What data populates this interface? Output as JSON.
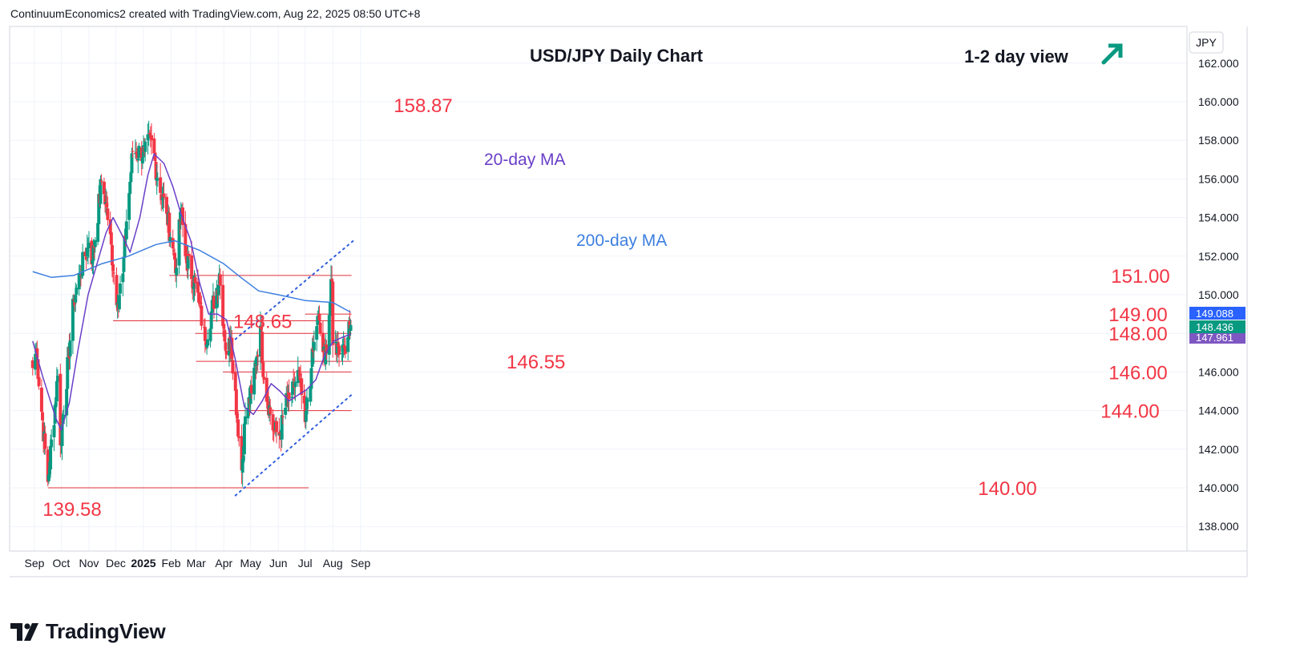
{
  "credit": "ContinuumEconomics2 created with TradingView.com, Aug 22, 2025 08:50 UTC+8",
  "brand": "TradingView",
  "colors": {
    "up": "#089981",
    "down": "#f23645",
    "level_line": "#e2303a",
    "ma20": "#6a3fc8",
    "ma200": "#3d7fe0",
    "channel": "#2f5ee0",
    "label_red": "#f23645",
    "arrow": "#089981",
    "grid": "#f0f3fa",
    "text": "#131722"
  },
  "chart_data": {
    "type": "candlestick",
    "title": "USD/JPY Daily Chart",
    "view_label": "1-2 day view",
    "view_direction": "up-arrow-icon",
    "currency": "JPY",
    "y_range": [
      136.8,
      163.2
    ],
    "y_ticks": [
      "162.000",
      "160.000",
      "158.000",
      "156.000",
      "154.000",
      "152.000",
      "150.000",
      "148.000",
      "146.000",
      "144.000",
      "142.000",
      "140.000",
      "138.000"
    ],
    "x_labels": [
      "Sep",
      "Oct",
      "Nov",
      "Dec",
      "2025",
      "Feb",
      "Mar",
      "Apr",
      "May",
      "Jun",
      "Jul",
      "Aug",
      "Sep"
    ],
    "price_tags": [
      {
        "text": "149.088",
        "value": 149.088,
        "color": "#2962ff"
      },
      {
        "text": "148.436",
        "value": 148.436,
        "color": "#089981"
      },
      {
        "text": "147.961",
        "value": 147.961,
        "color": "#7e57c2"
      }
    ],
    "levels": [
      {
        "label": "151.00",
        "value": 151.0,
        "from": "2025-01-30",
        "to": "2025-08-22"
      },
      {
        "label": "149.00",
        "value": 149.0,
        "from": "2025-07-01",
        "to": "2025-08-22"
      },
      {
        "label": "148.65",
        "value": 148.65,
        "from": "2024-11-28",
        "to": "2025-08-22"
      },
      {
        "label": "148.00",
        "value": 148.0,
        "from": "2025-02-28",
        "to": "2025-08-22"
      },
      {
        "label": "146.55",
        "value": 146.55,
        "from": "2025-03-01",
        "to": "2025-08-22"
      },
      {
        "label": "146.00",
        "value": 146.0,
        "from": "2025-03-31",
        "to": "2025-08-22"
      },
      {
        "label": "144.00",
        "value": 144.0,
        "from": "2025-04-07",
        "to": "2025-08-22"
      },
      {
        "label": "140.00",
        "value": 140.0,
        "from": "2024-09-16",
        "to": "2025-07-05"
      }
    ],
    "extremes": [
      {
        "label": "158.87",
        "value": 158.87,
        "date": "2025-01-10"
      },
      {
        "label": "139.58",
        "value": 139.58,
        "date": "2024-09-16"
      }
    ],
    "ma_labels": [
      "20-day MA",
      "200-day MA"
    ],
    "channel": [
      {
        "from": {
          "date": "2025-04-14",
          "value": 147.7
        },
        "to": {
          "date": "2025-08-24",
          "value": 152.8
        }
      },
      {
        "from": {
          "date": "2025-04-14",
          "value": 139.6
        },
        "to": {
          "date": "2025-08-24",
          "value": 144.9
        }
      }
    ],
    "swing_points": [
      {
        "date": "2024-08-30",
        "value": 146.2
      },
      {
        "date": "2024-09-03",
        "value": 147.2
      },
      {
        "date": "2024-09-16",
        "value": 140.3
      },
      {
        "date": "2024-09-27",
        "value": 145.8
      },
      {
        "date": "2024-09-30",
        "value": 142.2
      },
      {
        "date": "2024-10-15",
        "value": 149.7
      },
      {
        "date": "2024-10-22",
        "value": 151.1
      },
      {
        "date": "2024-11-01",
        "value": 152.7
      },
      {
        "date": "2024-11-05",
        "value": 151.8
      },
      {
        "date": "2024-11-15",
        "value": 155.9
      },
      {
        "date": "2024-11-20",
        "value": 154.8
      },
      {
        "date": "2024-12-03",
        "value": 149.6
      },
      {
        "date": "2024-12-09",
        "value": 151.1
      },
      {
        "date": "2024-12-13",
        "value": 153.8
      },
      {
        "date": "2024-12-20",
        "value": 157.4
      },
      {
        "date": "2025-01-02",
        "value": 157.4
      },
      {
        "date": "2025-01-10",
        "value": 158.0
      },
      {
        "date": "2025-01-17",
        "value": 156.0
      },
      {
        "date": "2025-01-27",
        "value": 154.2
      },
      {
        "date": "2025-02-03",
        "value": 152.4
      },
      {
        "date": "2025-02-07",
        "value": 151.4
      },
      {
        "date": "2025-02-12",
        "value": 154.5
      },
      {
        "date": "2025-02-17",
        "value": 152.0
      },
      {
        "date": "2025-02-28",
        "value": 150.6
      },
      {
        "date": "2025-03-04",
        "value": 149.6
      },
      {
        "date": "2025-03-11",
        "value": 147.6
      },
      {
        "date": "2025-03-27",
        "value": 151.0
      },
      {
        "date": "2025-04-04",
        "value": 146.9
      },
      {
        "date": "2025-04-09",
        "value": 147.7
      },
      {
        "date": "2025-04-21",
        "value": 140.9
      },
      {
        "date": "2025-04-25",
        "value": 143.7
      },
      {
        "date": "2025-05-02",
        "value": 144.9
      },
      {
        "date": "2025-05-12",
        "value": 148.4
      },
      {
        "date": "2025-05-16",
        "value": 145.6
      },
      {
        "date": "2025-05-27",
        "value": 142.9
      },
      {
        "date": "2025-06-03",
        "value": 142.8
      },
      {
        "date": "2025-06-11",
        "value": 144.6
      },
      {
        "date": "2025-06-16",
        "value": 144.7
      },
      {
        "date": "2025-06-23",
        "value": 146.1
      },
      {
        "date": "2025-07-01",
        "value": 143.4
      },
      {
        "date": "2025-07-08",
        "value": 146.2
      },
      {
        "date": "2025-07-15",
        "value": 148.9
      },
      {
        "date": "2025-07-23",
        "value": 146.5
      },
      {
        "date": "2025-07-31",
        "value": 150.7
      },
      {
        "date": "2025-08-01",
        "value": 147.4
      },
      {
        "date": "2025-08-07",
        "value": 147.3
      },
      {
        "date": "2025-08-13",
        "value": 147.4
      },
      {
        "date": "2025-08-18",
        "value": 147.8
      },
      {
        "date": "2025-08-21",
        "value": 148.43
      }
    ],
    "ma20_points": [
      {
        "date": "2024-08-30",
        "value": 147.6
      },
      {
        "date": "2024-09-10",
        "value": 145.8
      },
      {
        "date": "2024-09-25",
        "value": 143.6
      },
      {
        "date": "2024-10-01",
        "value": 143.0
      },
      {
        "date": "2024-10-10",
        "value": 144.4
      },
      {
        "date": "2024-10-20",
        "value": 147.2
      },
      {
        "date": "2024-10-31",
        "value": 150.0
      },
      {
        "date": "2024-11-10",
        "value": 151.6
      },
      {
        "date": "2024-11-20",
        "value": 153.2
      },
      {
        "date": "2024-11-28",
        "value": 154.0
      },
      {
        "date": "2024-12-08",
        "value": 153.1
      },
      {
        "date": "2024-12-17",
        "value": 152.2
      },
      {
        "date": "2024-12-28",
        "value": 154.0
      },
      {
        "date": "2025-01-06",
        "value": 156.2
      },
      {
        "date": "2025-01-13",
        "value": 157.3
      },
      {
        "date": "2025-01-24",
        "value": 156.8
      },
      {
        "date": "2025-02-03",
        "value": 155.6
      },
      {
        "date": "2025-02-12",
        "value": 154.2
      },
      {
        "date": "2025-02-23",
        "value": 152.8
      },
      {
        "date": "2025-03-05",
        "value": 150.6
      },
      {
        "date": "2025-03-15",
        "value": 149.0
      },
      {
        "date": "2025-03-25",
        "value": 149.0
      },
      {
        "date": "2025-04-04",
        "value": 148.7
      },
      {
        "date": "2025-04-14",
        "value": 146.6
      },
      {
        "date": "2025-04-24",
        "value": 144.2
      },
      {
        "date": "2025-05-04",
        "value": 143.8
      },
      {
        "date": "2025-05-14",
        "value": 144.5
      },
      {
        "date": "2025-05-24",
        "value": 145.4
      },
      {
        "date": "2025-06-03",
        "value": 145.0
      },
      {
        "date": "2025-06-13",
        "value": 144.5
      },
      {
        "date": "2025-06-23",
        "value": 144.8
      },
      {
        "date": "2025-07-03",
        "value": 145.1
      },
      {
        "date": "2025-07-13",
        "value": 145.6
      },
      {
        "date": "2025-07-23",
        "value": 146.9
      },
      {
        "date": "2025-08-02",
        "value": 147.6
      },
      {
        "date": "2025-08-12",
        "value": 147.8
      },
      {
        "date": "2025-08-21",
        "value": 147.96
      }
    ],
    "ma200_points": [
      {
        "date": "2024-08-30",
        "value": 151.2
      },
      {
        "date": "2024-09-20",
        "value": 150.9
      },
      {
        "date": "2024-10-15",
        "value": 151.0
      },
      {
        "date": "2024-11-15",
        "value": 151.6
      },
      {
        "date": "2024-12-15",
        "value": 152.0
      },
      {
        "date": "2025-01-15",
        "value": 152.6
      },
      {
        "date": "2025-02-05",
        "value": 152.8
      },
      {
        "date": "2025-03-05",
        "value": 152.3
      },
      {
        "date": "2025-04-01",
        "value": 151.6
      },
      {
        "date": "2025-04-20",
        "value": 150.9
      },
      {
        "date": "2025-05-10",
        "value": 150.2
      },
      {
        "date": "2025-06-01",
        "value": 150.0
      },
      {
        "date": "2025-07-01",
        "value": 149.7
      },
      {
        "date": "2025-08-01",
        "value": 149.6
      },
      {
        "date": "2025-08-21",
        "value": 149.09
      }
    ]
  }
}
